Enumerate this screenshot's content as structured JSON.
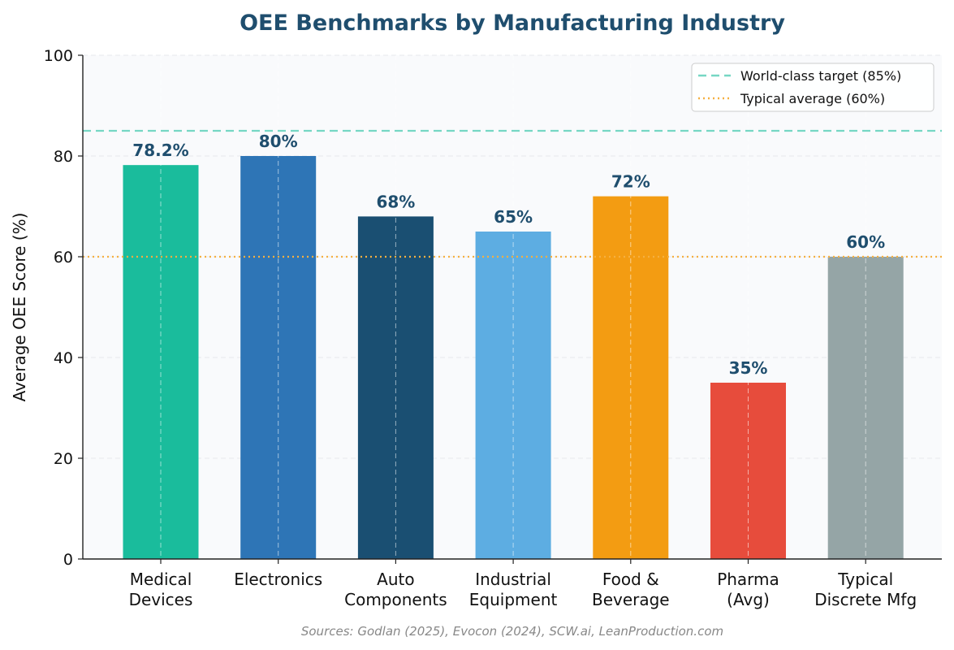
{
  "chart_data": {
    "type": "bar",
    "title": "OEE Benchmarks by Manufacturing Industry",
    "xlabel": "",
    "ylabel": "Average OEE Score (%)",
    "ylim": [
      0,
      100
    ],
    "yticks": [
      0,
      20,
      40,
      60,
      80,
      100
    ],
    "grid": true,
    "legend_position": "top-right",
    "categories": [
      [
        "Medical",
        "Devices"
      ],
      [
        "Electronics"
      ],
      [
        "Auto",
        "Components"
      ],
      [
        "Industrial",
        "Equipment"
      ],
      [
        "Food &",
        "Beverage"
      ],
      [
        "Pharma",
        "(Avg)"
      ],
      [
        "Typical",
        "Discrete Mfg"
      ]
    ],
    "values": [
      78.2,
      80,
      68,
      65,
      72,
      35,
      60
    ],
    "value_labels": [
      "78.2%",
      "80%",
      "68%",
      "65%",
      "72%",
      "35%",
      "60%"
    ],
    "bar_colors": [
      "#1abc9c",
      "#2e75b6",
      "#1a4f72",
      "#5dade2",
      "#f39c12",
      "#e74c3c",
      "#95a5a6"
    ],
    "reference_lines": [
      {
        "label": "World-class target (85%)",
        "value": 85,
        "color": "#76d7c4",
        "style": "dashed"
      },
      {
        "label": "Typical average (60%)",
        "value": 60,
        "color": "#f5b041",
        "style": "dotted"
      }
    ],
    "source": "Sources: Godlan (2025), Evocon (2024), SCW.ai, LeanProduction.com"
  }
}
